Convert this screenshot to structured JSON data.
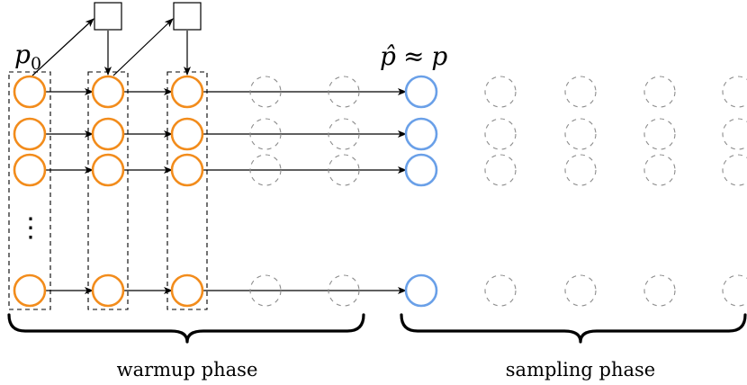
{
  "labels": {
    "initial_distribution": "p",
    "initial_subscript": "0",
    "approximation_lhs": "p̂",
    "approximation_relation": "≈",
    "approximation_rhs": "p",
    "vertical_ellipsis": "⋮"
  },
  "phases": {
    "warmup": "warmup phase",
    "sampling": "sampling phase"
  },
  "colors": {
    "warmup_node": "#f28c1c",
    "target_node": "#6aa0e8",
    "ghost_node": "#8c8c8c"
  }
}
